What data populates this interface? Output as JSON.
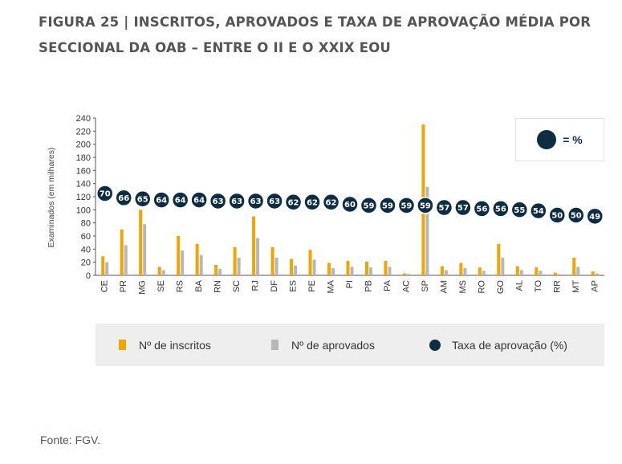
{
  "title": "FIGURA 25 | INSCRITOS, APROVADOS E TAXA DE APROVAÇÃO MÉDIA POR SECCIONAL DA OAB – ENTRE O II E O XXIX EOU",
  "source": "Fonte: FGV.",
  "colors": {
    "inscritos": "#f0a500",
    "aprovados": "#b7b7b7",
    "taxa": "#0f2d42",
    "legend_bg": "#eeeeee"
  },
  "inset": {
    "text": "= %"
  },
  "chart_data": {
    "type": "bar",
    "ylabel": "Examinados (em milhares)",
    "ylim": [
      0,
      240
    ],
    "yticks": [
      0,
      20,
      40,
      60,
      80,
      100,
      120,
      140,
      160,
      180,
      200,
      220,
      240
    ],
    "categories": [
      "CE",
      "PR",
      "MG",
      "SE",
      "RS",
      "BA",
      "RN",
      "SC",
      "RJ",
      "DF",
      "ES",
      "PE",
      "MA",
      "PI",
      "PB",
      "PA",
      "AC",
      "SP",
      "AM",
      "MS",
      "RO",
      "GO",
      "AL",
      "TO",
      "RR",
      "MT",
      "AP"
    ],
    "series": [
      {
        "name": "Nº de inscritos",
        "kind": "bar",
        "values": [
          29,
          70,
          100,
          13,
          60,
          48,
          16,
          43,
          90,
          43,
          25,
          39,
          19,
          22,
          21,
          22,
          3,
          230,
          14,
          19,
          12,
          48,
          14,
          12,
          4,
          27,
          6
        ]
      },
      {
        "name": "Nº de aprovados",
        "kind": "bar",
        "values": [
          20,
          46,
          78,
          8,
          38,
          31,
          10,
          27,
          57,
          27,
          15,
          24,
          11,
          13,
          12,
          13,
          2,
          135,
          8,
          11,
          7,
          27,
          8,
          7,
          2,
          13,
          3
        ]
      },
      {
        "name": "Taxa de aprovação (%)",
        "kind": "marker",
        "values": [
          70,
          66,
          65,
          64,
          64,
          64,
          63,
          63,
          63,
          63,
          62,
          62,
          62,
          60,
          59,
          59,
          59,
          59,
          57,
          57,
          56,
          56,
          55,
          54,
          50,
          50,
          49
        ]
      }
    ],
    "legend": "bottom"
  }
}
